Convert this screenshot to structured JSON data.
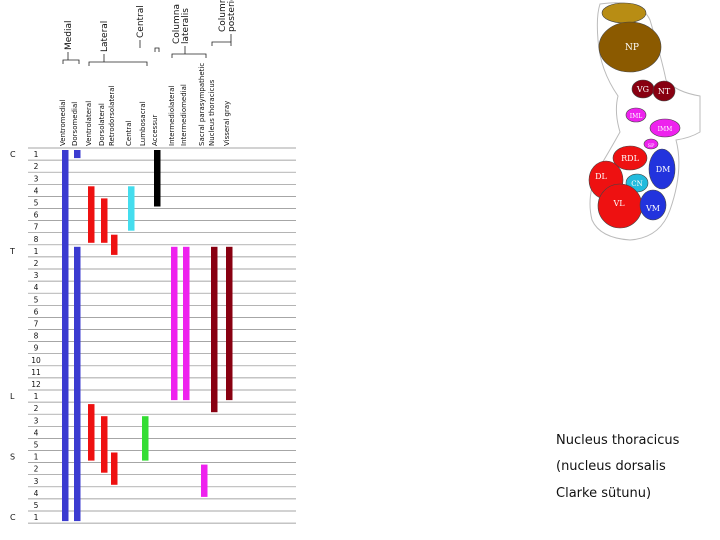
{
  "group_labels": [
    "Medial",
    "Lateral",
    "Central",
    "Columna lateralis",
    "Columna posterior"
  ],
  "column_labels": [
    "Ventromedial",
    "Dorsomedial",
    "Ventrolateral",
    "Dorsolateral",
    "Retrodorsolateral",
    "Central",
    "Lumbosacral",
    "Accessur",
    "Intermediolateral",
    "Intermediomedial",
    "Sacral parasympathetic",
    "Nucleus thoracicus",
    "Visseral gray"
  ],
  "segments": [
    {
      "region": "C",
      "number": "1"
    },
    {
      "region": "",
      "number": "2"
    },
    {
      "region": "",
      "number": "3"
    },
    {
      "region": "",
      "number": "4"
    },
    {
      "region": "",
      "number": "5"
    },
    {
      "region": "",
      "number": "6"
    },
    {
      "region": "",
      "number": "7"
    },
    {
      "region": "",
      "number": "8"
    },
    {
      "region": "T",
      "number": "1"
    },
    {
      "region": "",
      "number": "2"
    },
    {
      "region": "",
      "number": "3"
    },
    {
      "region": "",
      "number": "4"
    },
    {
      "region": "",
      "number": "5"
    },
    {
      "region": "",
      "number": "6"
    },
    {
      "region": "",
      "number": "7"
    },
    {
      "region": "",
      "number": "8"
    },
    {
      "region": "",
      "number": "9"
    },
    {
      "region": "",
      "number": "10"
    },
    {
      "region": "",
      "number": "11"
    },
    {
      "region": "",
      "number": "12"
    },
    {
      "region": "L",
      "number": "1"
    },
    {
      "region": "",
      "number": "2"
    },
    {
      "region": "",
      "number": "3"
    },
    {
      "region": "",
      "number": "4"
    },
    {
      "region": "",
      "number": "5"
    },
    {
      "region": "S",
      "number": "1"
    },
    {
      "region": "",
      "number": "2"
    },
    {
      "region": "",
      "number": "3"
    },
    {
      "region": "",
      "number": "4"
    },
    {
      "region": "",
      "number": "5"
    },
    {
      "region": "C",
      "number": "1"
    }
  ],
  "bars": [
    {
      "column": 0,
      "from": 0,
      "to": 30,
      "color": "#3b3bd0"
    },
    {
      "column": 1,
      "from": 0,
      "to": 0,
      "color": "#3b3bd0"
    },
    {
      "column": 1,
      "from": 8,
      "to": 30,
      "color": "#3b3bd0"
    },
    {
      "column": 2,
      "from": 3,
      "to": 7,
      "color": "#ee1111"
    },
    {
      "column": 2,
      "from": 21,
      "to": 25,
      "color": "#ee1111"
    },
    {
      "column": 3,
      "from": 4,
      "to": 7,
      "color": "#ee1111"
    },
    {
      "column": 3,
      "from": 22,
      "to": 26,
      "color": "#ee1111"
    },
    {
      "column": 4,
      "from": 7,
      "to": 8,
      "color": "#ee1111"
    },
    {
      "column": 4,
      "from": 25,
      "to": 27,
      "color": "#ee1111"
    },
    {
      "column": 5,
      "from": 3,
      "to": 6,
      "color": "#44ddee"
    },
    {
      "column": 6,
      "from": 22,
      "to": 25,
      "color": "#33dd33"
    },
    {
      "column": 7,
      "from": 0,
      "to": 4,
      "color": "#000000"
    },
    {
      "column": 8,
      "from": 8,
      "to": 20,
      "color": "#ee22ee"
    },
    {
      "column": 9,
      "from": 8,
      "to": 20,
      "color": "#ee22ee"
    },
    {
      "column": 10,
      "from": 26,
      "to": 28,
      "color": "#ee22ee"
    },
    {
      "column": 11,
      "from": 8,
      "to": 21,
      "color": "#880011"
    },
    {
      "column": 12,
      "from": 8,
      "to": 20,
      "color": "#880011"
    }
  ],
  "cross_section": {
    "nuclei": [
      "NP",
      "VG",
      "NT",
      "IML",
      "IMM",
      "SP",
      "RDL",
      "DL",
      "DM",
      "CN",
      "VL",
      "VM"
    ],
    "colors": {
      "motor": "#ee1111",
      "medial": "#2233dd",
      "central": "#22bbdd",
      "intermediate": "#ee22ee",
      "posterior": "#8b5a00",
      "thoracic": "#880011"
    }
  },
  "caption": {
    "line1": "Nucleus thoracicus",
    "line2": "(nucleus dorsalis",
    "line3": "Clarke sütunu)"
  }
}
